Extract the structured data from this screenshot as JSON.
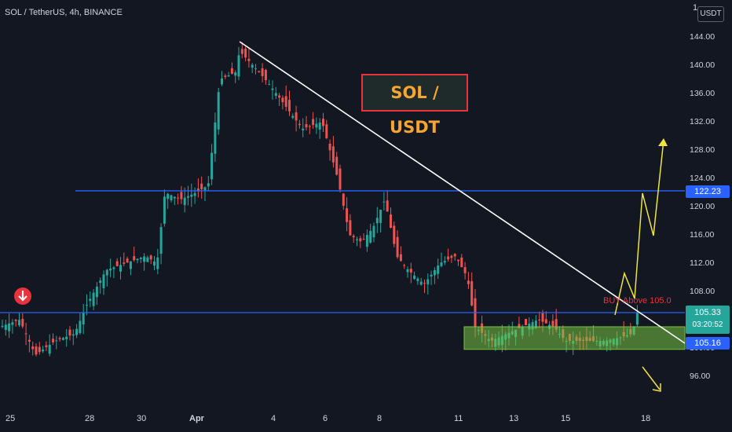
{
  "header": {
    "symbol": "SOL / TetherUS, 4h, BINANCE",
    "currency": "USDT",
    "corner_char": "1"
  },
  "annotations": {
    "title_box": "SOL / USDT",
    "buy_note": "BUY Above 105.0"
  },
  "price_tags": {
    "resistance": "122.23",
    "current": "105.33",
    "countdown": "03:20:52",
    "support": "105.16"
  },
  "colors": {
    "background": "#131722",
    "up": "#26a69a",
    "down": "#ef5350",
    "blue_line": "#2962ff",
    "zone": "#76c442",
    "arrow": "#f0e442"
  },
  "chart_data": {
    "type": "candlestick",
    "y_ticks": [
      "144.00",
      "140.00",
      "136.00",
      "132.00",
      "128.00",
      "124.00",
      "120.00",
      "116.00",
      "112.00",
      "108.00",
      "100.00",
      "96.00"
    ],
    "x_ticks": [
      "25",
      "28",
      "30",
      "Apr",
      "4",
      "6",
      "8",
      "11",
      "13",
      "15",
      "18"
    ],
    "ylim": [
      93,
      148
    ],
    "levels": [
      122.23,
      105.0
    ],
    "support_zone": [
      99.8,
      103.0
    ]
  }
}
